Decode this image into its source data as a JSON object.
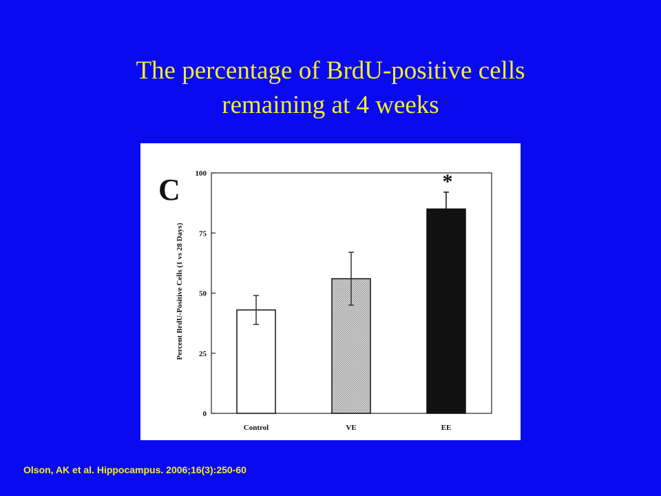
{
  "slide": {
    "title_line1": "The percentage of BrdU-positive cells",
    "title_line2": "remaining at 4 weeks",
    "citation": "Olson, AK et al. Hippocampus. 2006;16(3):250-60",
    "background_color": "#0a0af2",
    "text_color": "#f2ee2a"
  },
  "chart_data": {
    "type": "bar",
    "panel_label": "C",
    "ylabel": "Percent BrdU-Positive Cells (1 vs 28 Days)",
    "xlabel": "",
    "ylim": [
      0,
      100
    ],
    "yticks": [
      0,
      25,
      50,
      75,
      100
    ],
    "grid": false,
    "legend": "none",
    "categories": [
      "Control",
      "VE",
      "EE"
    ],
    "values": [
      43,
      56,
      85
    ],
    "error": [
      6,
      11,
      7
    ],
    "fills": [
      "#ffffff",
      "#c4c4c4",
      "#111111"
    ],
    "significance": [
      "",
      "",
      "*"
    ]
  }
}
